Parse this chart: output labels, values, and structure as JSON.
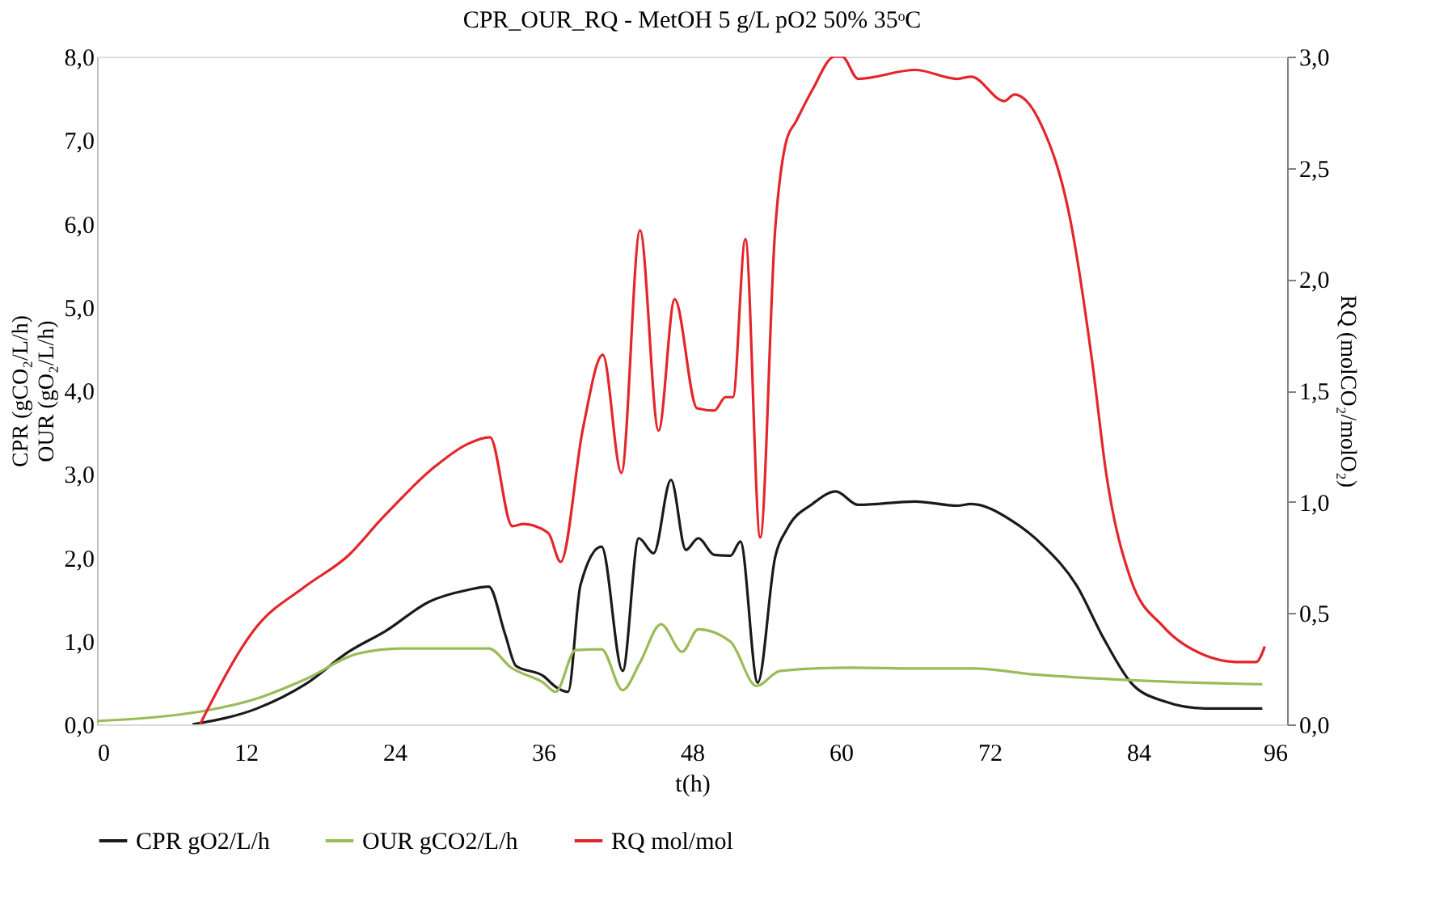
{
  "chart_data": {
    "type": "line",
    "title": "CPR_OUR_RQ -  MetOH 5 g/L  pO2 50%  35ᵒC",
    "xlabel": "t(h)",
    "ylabel": "CPR (gCO₂/L/h)\nOUR (gO₂/L/h)",
    "y2label": "RQ (molCO₂/molO₂)",
    "xlim": [
      0,
      96
    ],
    "xticks": [
      0,
      12,
      24,
      36,
      48,
      60,
      72,
      84,
      96
    ],
    "ylim": [
      0,
      8
    ],
    "yticks": [
      {
        "value": 0,
        "label": "0,0"
      },
      {
        "value": 1,
        "label": "1,0"
      },
      {
        "value": 2,
        "label": "2,0"
      },
      {
        "value": 3,
        "label": "3,0"
      },
      {
        "value": 4,
        "label": "4,0"
      },
      {
        "value": 5,
        "label": "5,0"
      },
      {
        "value": 6,
        "label": "6,0"
      },
      {
        "value": 7,
        "label": "7,0"
      },
      {
        "value": 8,
        "label": "8,0"
      }
    ],
    "y2lim": [
      0,
      3
    ],
    "y2ticks": [
      {
        "value": 0,
        "label": "0,0"
      },
      {
        "value": 0.5,
        "label": "0,5"
      },
      {
        "value": 1,
        "label": "1,0"
      },
      {
        "value": 1.5,
        "label": "1,5"
      },
      {
        "value": 2,
        "label": "2,0"
      },
      {
        "value": 2.5,
        "label": "2,5"
      },
      {
        "value": 3,
        "label": "3,0"
      }
    ],
    "legend": "bottom",
    "grid": false,
    "series": [
      {
        "name": "CPR gO2/L/h",
        "color": "#1a1a1a",
        "x": [
          7.7,
          12.9,
          16.8,
          20.3,
          23.3,
          26.8,
          29.9,
          31.6,
          32.9,
          33.8,
          36,
          37,
          38,
          39,
          40.7,
          42.4,
          43.7,
          44.9,
          46.3,
          47.5,
          48.5,
          49.8,
          51.1,
          51.9,
          53.3,
          54.7,
          55.7,
          57.7,
          59.6,
          61.4,
          66,
          69.4,
          70.5,
          73.8,
          76.4,
          79,
          81.2,
          83.4,
          86,
          89.4,
          94
        ],
        "values": [
          0,
          0.19,
          0.48,
          0.87,
          1.12,
          1.47,
          1.61,
          1.65,
          1.09,
          0.7,
          0.58,
          0.45,
          0.39,
          1.67,
          2.13,
          0.64,
          2.23,
          2.05,
          2.93,
          2.09,
          2.23,
          2.03,
          2.02,
          2.19,
          0.5,
          2.0,
          2.35,
          2.64,
          2.79,
          2.63,
          2.67,
          2.62,
          2.64,
          2.44,
          2.13,
          1.67,
          1.03,
          0.5,
          0.28,
          0.19,
          0.19
        ]
      },
      {
        "name": "OUR gCO2/L/h",
        "color": "#9bbb59",
        "x": [
          0,
          4.2,
          8.6,
          12.9,
          16.8,
          21.1,
          24.6,
          31.6,
          33.4,
          36,
          37,
          38.6,
          40.7,
          42.4,
          43.8,
          45.5,
          47.2,
          48.5,
          51.1,
          53.2,
          55.1,
          60.8,
          66,
          70.7,
          75.5,
          83.4,
          94
        ],
        "values": [
          0.04,
          0.08,
          0.16,
          0.31,
          0.54,
          0.85,
          0.91,
          0.91,
          0.68,
          0.5,
          0.39,
          0.89,
          0.9,
          0.41,
          0.74,
          1.2,
          0.87,
          1.14,
          0.99,
          0.46,
          0.64,
          0.68,
          0.67,
          0.67,
          0.6,
          0.53,
          0.48
        ]
      },
      {
        "name": "RQ mol/mol",
        "color": "#e3262b",
        "axis": "y2",
        "x": [
          8.3,
          12.9,
          16.8,
          20.3,
          22.9,
          27.3,
          29.9,
          31.7,
          33.5,
          34.4,
          36.4,
          37.4,
          39.2,
          40.8,
          42.3,
          43.8,
          45.3,
          46.6,
          48.4,
          49.8,
          50.7,
          51.3,
          52.3,
          53.5,
          54.7,
          55.6,
          56.4,
          57.7,
          59.5,
          60.1,
          61.4,
          66,
          69.4,
          70.5,
          73.2,
          74,
          76.2,
          78.5,
          80.3,
          81.4,
          83.4,
          86,
          89.4,
          92.1,
          93.5,
          94.2
        ],
        "values": [
          0,
          0.44,
          0.62,
          0.76,
          0.92,
          1.16,
          1.26,
          1.29,
          0.89,
          0.9,
          0.86,
          0.73,
          1.33,
          1.66,
          1.13,
          2.22,
          1.32,
          1.91,
          1.42,
          1.41,
          1.47,
          1.47,
          2.18,
          0.84,
          2.22,
          2.62,
          2.71,
          2.85,
          3.0,
          3.0,
          2.9,
          2.94,
          2.9,
          2.91,
          2.8,
          2.83,
          2.69,
          2.27,
          1.62,
          1.13,
          0.65,
          0.44,
          0.31,
          0.28,
          0.28,
          0.35
        ]
      }
    ]
  }
}
